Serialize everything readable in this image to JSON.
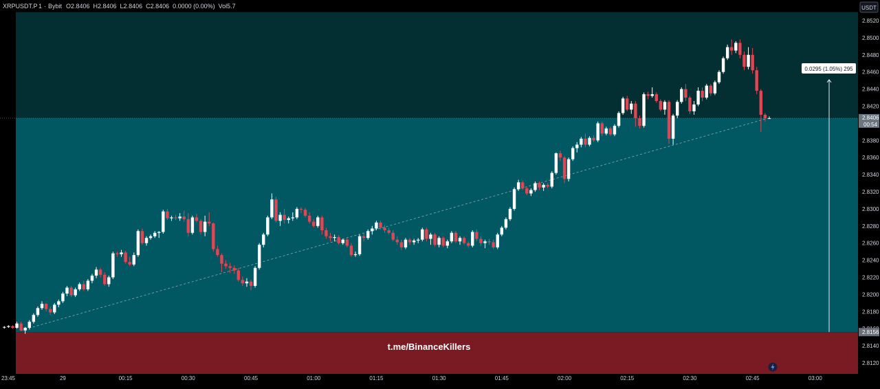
{
  "header": {
    "symbol": "XRPUSDT.P",
    "interval": "1",
    "exchange": "Bybit",
    "ohlc_text": "O2.8406  H2.8406  L2.8406  C2.8406  0.0000 (0.00%)  Vol5.7"
  },
  "currency_label": "USDT",
  "watermark": "t.me/BinanceKillers",
  "measure_label": "0.0295 (1.05%) 295",
  "last_price": {
    "price": "2.8406",
    "countdown": "00:54"
  },
  "range_low_label": "2.8156",
  "colors": {
    "background": "#000000",
    "upper_zone": "#032f33",
    "middle_zone": "#025862",
    "lower_zone": "#7a1a22",
    "bull_candle": "#ffffff",
    "bear_candle": "#e04755",
    "axis_text": "#d1d4dc",
    "bolt_icon_bg": "#1a1f3a",
    "bolt_icon_color": "#6f8cff"
  },
  "chart_data": {
    "type": "candlestick",
    "y_axis": {
      "range": [
        2.8106,
        2.853
      ],
      "ticks": [
        "2.8120",
        "2.8140",
        "2.8160",
        "2.8180",
        "2.8200",
        "2.8220",
        "2.8240",
        "2.8260",
        "2.8280",
        "2.8300",
        "2.8320",
        "2.8340",
        "2.8360",
        "2.8380",
        "2.8400",
        "2.8420",
        "2.8440",
        "2.8460",
        "2.8480",
        "2.8500",
        "2.8520"
      ]
    },
    "x_axis": {
      "ticks": [
        {
          "label": "23:45",
          "t": -1
        },
        {
          "label": "29",
          "t": 14
        },
        {
          "label": "00:15",
          "t": 29
        },
        {
          "label": "00:30",
          "t": 44
        },
        {
          "label": "00:45",
          "t": 59
        },
        {
          "label": "01:00",
          "t": 74
        },
        {
          "label": "01:15",
          "t": 89
        },
        {
          "label": "01:30",
          "t": 104
        },
        {
          "label": "01:45",
          "t": 119
        },
        {
          "label": "02:00",
          "t": 134
        },
        {
          "label": "02:15",
          "t": 149
        },
        {
          "label": "02:30",
          "t": 164
        },
        {
          "label": "02:45",
          "t": 179
        },
        {
          "label": "03:00",
          "t": 194
        }
      ],
      "minutes_per_candle": 1
    },
    "zones": [
      {
        "name": "upper",
        "from": 2.8406,
        "to": 2.853
      },
      {
        "name": "middle",
        "from": 2.8156,
        "to": 2.8406
      },
      {
        "name": "lower",
        "from": 2.8106,
        "to": 2.8156
      }
    ],
    "measure": {
      "from": 2.8156,
      "to": 2.8451,
      "change": 0.0295,
      "percent": 1.05,
      "bars": 295
    },
    "trendline": {
      "from": {
        "t": 4,
        "p": 2.8158
      },
      "to": {
        "t": 182,
        "p": 2.8405
      }
    },
    "candles": [
      [
        2.8162,
        2.8163,
        2.816,
        2.8162
      ],
      [
        2.8162,
        2.8164,
        2.8161,
        2.8163
      ],
      [
        2.8163,
        2.8164,
        2.816,
        2.8161
      ],
      [
        2.8161,
        2.8168,
        2.816,
        2.8166
      ],
      [
        2.8166,
        2.8168,
        2.8157,
        2.8158
      ],
      [
        2.8158,
        2.8162,
        2.8154,
        2.8161
      ],
      [
        2.8161,
        2.817,
        2.8159,
        2.8168
      ],
      [
        2.8168,
        2.8178,
        2.8166,
        2.8176
      ],
      [
        2.8176,
        2.8186,
        2.8174,
        2.8184
      ],
      [
        2.8184,
        2.8192,
        2.8182,
        2.8189
      ],
      [
        2.8189,
        2.819,
        2.818,
        2.8183
      ],
      [
        2.8183,
        2.8186,
        2.8176,
        2.8179
      ],
      [
        2.8179,
        2.819,
        2.8177,
        2.8188
      ],
      [
        2.8188,
        2.8194,
        2.8185,
        2.8192
      ],
      [
        2.8192,
        2.8203,
        2.819,
        2.8201
      ],
      [
        2.8201,
        2.821,
        2.8198,
        2.8208
      ],
      [
        2.8208,
        2.821,
        2.8197,
        2.8199
      ],
      [
        2.8199,
        2.8208,
        2.8197,
        2.8206
      ],
      [
        2.8206,
        2.8214,
        2.8204,
        2.8212
      ],
      [
        2.8212,
        2.8216,
        2.8204,
        2.8206
      ],
      [
        2.8206,
        2.8218,
        2.8204,
        2.8216
      ],
      [
        2.8216,
        2.8224,
        2.8213,
        2.8222
      ],
      [
        2.8222,
        2.8232,
        2.8219,
        2.8229
      ],
      [
        2.8229,
        2.8231,
        2.822,
        2.8223
      ],
      [
        2.8223,
        2.8226,
        2.821,
        2.8212
      ],
      [
        2.8212,
        2.8222,
        2.8209,
        2.822
      ],
      [
        2.822,
        2.825,
        2.8218,
        2.8248
      ],
      [
        2.8248,
        2.825,
        2.8244,
        2.8247
      ],
      [
        2.8247,
        2.8252,
        2.8244,
        2.8249
      ],
      [
        2.8249,
        2.8251,
        2.8236,
        2.8238
      ],
      [
        2.8238,
        2.8244,
        2.8233,
        2.8235
      ],
      [
        2.8235,
        2.8249,
        2.8233,
        2.8246
      ],
      [
        2.8246,
        2.8276,
        2.8244,
        2.8274
      ],
      [
        2.8274,
        2.8277,
        2.8258,
        2.826
      ],
      [
        2.826,
        2.8268,
        2.8257,
        2.8266
      ],
      [
        2.8266,
        2.827,
        2.8264,
        2.8268
      ],
      [
        2.8268,
        2.8274,
        2.8266,
        2.8272
      ],
      [
        2.8272,
        2.8274,
        2.8266,
        2.8273
      ],
      [
        2.8273,
        2.8299,
        2.8271,
        2.8297
      ],
      [
        2.8297,
        2.83,
        2.8287,
        2.8289
      ],
      [
        2.8289,
        2.8292,
        2.8286,
        2.829
      ],
      [
        2.829,
        2.8293,
        2.8287,
        2.8289
      ],
      [
        2.8289,
        2.8295,
        2.8286,
        2.8291
      ],
      [
        2.8291,
        2.8298,
        2.8285,
        2.8288
      ],
      [
        2.8288,
        2.8295,
        2.8268,
        2.8272
      ],
      [
        2.8272,
        2.8292,
        2.827,
        2.829
      ],
      [
        2.829,
        2.8294,
        2.8284,
        2.8286
      ],
      [
        2.8286,
        2.8288,
        2.827,
        2.8273
      ],
      [
        2.8273,
        2.8292,
        2.8268,
        2.8285
      ],
      [
        2.8285,
        2.8296,
        2.828,
        2.8283
      ],
      [
        2.8283,
        2.8284,
        2.825,
        2.8253
      ],
      [
        2.8253,
        2.8257,
        2.8244,
        2.8246
      ],
      [
        2.8246,
        2.8248,
        2.8226,
        2.8236
      ],
      [
        2.8236,
        2.824,
        2.823,
        2.8233
      ],
      [
        2.8233,
        2.8237,
        2.8225,
        2.8231
      ],
      [
        2.8231,
        2.8234,
        2.8224,
        2.8228
      ],
      [
        2.8228,
        2.8231,
        2.8215,
        2.8217
      ],
      [
        2.8217,
        2.8221,
        2.821,
        2.8213
      ],
      [
        2.8213,
        2.8219,
        2.8209,
        2.8215
      ],
      [
        2.8215,
        2.8217,
        2.8205,
        2.821
      ],
      [
        2.821,
        2.8233,
        2.8208,
        2.8231
      ],
      [
        2.8231,
        2.826,
        2.8229,
        2.8258
      ],
      [
        2.8258,
        2.8272,
        2.8255,
        2.827
      ],
      [
        2.827,
        2.8292,
        2.8268,
        2.829
      ],
      [
        2.829,
        2.8318,
        2.8288,
        2.8311
      ],
      [
        2.8311,
        2.8314,
        2.8284,
        2.8286
      ],
      [
        2.8286,
        2.8296,
        2.828,
        2.8293
      ],
      [
        2.8293,
        2.83,
        2.8283,
        2.8287
      ],
      [
        2.8287,
        2.8291,
        2.8283,
        2.8289
      ],
      [
        2.8289,
        2.8296,
        2.8286,
        2.829
      ],
      [
        2.829,
        2.8302,
        2.8288,
        2.83
      ],
      [
        2.83,
        2.8302,
        2.8295,
        2.8299
      ],
      [
        2.8299,
        2.8301,
        2.829,
        2.8292
      ],
      [
        2.8292,
        2.8296,
        2.8283,
        2.8285
      ],
      [
        2.8285,
        2.8288,
        2.8278,
        2.828
      ],
      [
        2.828,
        2.8292,
        2.8278,
        2.829
      ],
      [
        2.829,
        2.8292,
        2.827,
        2.8275
      ],
      [
        2.8275,
        2.8278,
        2.8265,
        2.8268
      ],
      [
        2.8268,
        2.8272,
        2.8262,
        2.8266
      ],
      [
        2.8266,
        2.827,
        2.8262,
        2.8267
      ],
      [
        2.8267,
        2.8269,
        2.8258,
        2.826
      ],
      [
        2.826,
        2.8265,
        2.8258,
        2.8264
      ],
      [
        2.8264,
        2.8266,
        2.8255,
        2.8257
      ],
      [
        2.8257,
        2.826,
        2.8244,
        2.8246
      ],
      [
        2.8246,
        2.825,
        2.8244,
        2.8247
      ],
      [
        2.8247,
        2.827,
        2.8245,
        2.8268
      ],
      [
        2.8268,
        2.8272,
        2.8262,
        2.8266
      ],
      [
        2.8266,
        2.8276,
        2.8264,
        2.8274
      ],
      [
        2.8274,
        2.828,
        2.827,
        2.8277
      ],
      [
        2.8277,
        2.8286,
        2.8275,
        2.8284
      ],
      [
        2.8284,
        2.8286,
        2.8276,
        2.8278
      ],
      [
        2.8278,
        2.8281,
        2.8272,
        2.8275
      ],
      [
        2.8275,
        2.8278,
        2.827,
        2.8272
      ],
      [
        2.8272,
        2.8275,
        2.8262,
        2.8264
      ],
      [
        2.8264,
        2.8268,
        2.8258,
        2.8261
      ],
      [
        2.8261,
        2.8264,
        2.8252,
        2.8255
      ],
      [
        2.8255,
        2.8266,
        2.8253,
        2.8264
      ],
      [
        2.8264,
        2.8266,
        2.8258,
        2.8261
      ],
      [
        2.8261,
        2.8265,
        2.8258,
        2.8263
      ],
      [
        2.8263,
        2.8266,
        2.826,
        2.8264
      ],
      [
        2.8264,
        2.8278,
        2.8262,
        2.8276
      ],
      [
        2.8276,
        2.8278,
        2.8262,
        2.8265
      ],
      [
        2.8265,
        2.8272,
        2.8258,
        2.827
      ],
      [
        2.827,
        2.8272,
        2.8256,
        2.8258
      ],
      [
        2.8258,
        2.8268,
        2.8255,
        2.8266
      ],
      [
        2.8266,
        2.8268,
        2.8255,
        2.8257
      ],
      [
        2.8257,
        2.8264,
        2.8254,
        2.8262
      ],
      [
        2.8262,
        2.8274,
        2.826,
        2.8272
      ],
      [
        2.8272,
        2.8274,
        2.826,
        2.8262
      ],
      [
        2.8262,
        2.8268,
        2.8258,
        2.8266
      ],
      [
        2.8266,
        2.8268,
        2.8258,
        2.826
      ],
      [
        2.826,
        2.8262,
        2.8255,
        2.8257
      ],
      [
        2.8257,
        2.8275,
        2.8255,
        2.8273
      ],
      [
        2.8273,
        2.8276,
        2.8262,
        2.8265
      ],
      [
        2.8265,
        2.8268,
        2.8257,
        2.826
      ],
      [
        2.826,
        2.8264,
        2.8254,
        2.8262
      ],
      [
        2.8262,
        2.8265,
        2.8258,
        2.8261
      ],
      [
        2.8261,
        2.8264,
        2.8253,
        2.8255
      ],
      [
        2.8255,
        2.8272,
        2.8253,
        2.827
      ],
      [
        2.827,
        2.828,
        2.8268,
        2.8278
      ],
      [
        2.8278,
        2.829,
        2.8276,
        2.8288
      ],
      [
        2.8288,
        2.8302,
        2.8286,
        2.83
      ],
      [
        2.83,
        2.8325,
        2.8298,
        2.8323
      ],
      [
        2.8323,
        2.8334,
        2.8321,
        2.8331
      ],
      [
        2.8331,
        2.8333,
        2.8322,
        2.8324
      ],
      [
        2.8324,
        2.8326,
        2.8316,
        2.8318
      ],
      [
        2.8318,
        2.8324,
        2.8315,
        2.8322
      ],
      [
        2.8322,
        2.8332,
        2.832,
        2.833
      ],
      [
        2.833,
        2.8332,
        2.8322,
        2.8325
      ],
      [
        2.8325,
        2.833,
        2.8321,
        2.8328
      ],
      [
        2.8328,
        2.833,
        2.8324,
        2.8326
      ],
      [
        2.8326,
        2.8344,
        2.8324,
        2.8342
      ],
      [
        2.8342,
        2.8366,
        2.834,
        2.8365
      ],
      [
        2.8365,
        2.8368,
        2.8356,
        2.836
      ],
      [
        2.836,
        2.8362,
        2.833,
        2.8335
      ],
      [
        2.8335,
        2.836,
        2.8332,
        2.8358
      ],
      [
        2.8358,
        2.8373,
        2.8356,
        2.8371
      ],
      [
        2.8371,
        2.8378,
        2.8366,
        2.8375
      ],
      [
        2.8375,
        2.8384,
        2.8372,
        2.8382
      ],
      [
        2.8382,
        2.8388,
        2.8372,
        2.8375
      ],
      [
        2.8375,
        2.8385,
        2.8373,
        2.8383
      ],
      [
        2.8383,
        2.8386,
        2.8378,
        2.838
      ],
      [
        2.838,
        2.8402,
        2.8378,
        2.84
      ],
      [
        2.84,
        2.8402,
        2.8385,
        2.8388
      ],
      [
        2.8388,
        2.8396,
        2.8386,
        2.8394
      ],
      [
        2.8394,
        2.8396,
        2.8385,
        2.8387
      ],
      [
        2.8387,
        2.8399,
        2.8385,
        2.8397
      ],
      [
        2.8397,
        2.8414,
        2.8395,
        2.8412
      ],
      [
        2.8412,
        2.8431,
        2.841,
        2.8429
      ],
      [
        2.8429,
        2.8432,
        2.8414,
        2.8416
      ],
      [
        2.8416,
        2.8426,
        2.8411,
        2.8423
      ],
      [
        2.8423,
        2.8426,
        2.8396,
        2.8406
      ],
      [
        2.8406,
        2.8409,
        2.8394,
        2.8397
      ],
      [
        2.8397,
        2.8436,
        2.8395,
        2.8434
      ],
      [
        2.8434,
        2.8437,
        2.8428,
        2.8432
      ],
      [
        2.8432,
        2.8442,
        2.843,
        2.8434
      ],
      [
        2.8434,
        2.8436,
        2.8424,
        2.8426
      ],
      [
        2.8426,
        2.8428,
        2.8414,
        2.8416
      ],
      [
        2.8416,
        2.8427,
        2.841,
        2.8425
      ],
      [
        2.8425,
        2.8427,
        2.8376,
        2.8382
      ],
      [
        2.8382,
        2.8411,
        2.8375,
        2.8409
      ],
      [
        2.8409,
        2.8427,
        2.8406,
        2.8425
      ],
      [
        2.8425,
        2.8442,
        2.8423,
        2.844
      ],
      [
        2.844,
        2.8446,
        2.8426,
        2.843
      ],
      [
        2.843,
        2.8432,
        2.8411,
        2.8414
      ],
      [
        2.8414,
        2.8426,
        2.841,
        2.8422
      ],
      [
        2.8422,
        2.8442,
        2.842,
        2.8438
      ],
      [
        2.8438,
        2.8442,
        2.8426,
        2.843
      ],
      [
        2.843,
        2.8446,
        2.8428,
        2.8444
      ],
      [
        2.8444,
        2.8446,
        2.8432,
        2.8435
      ],
      [
        2.8435,
        2.845,
        2.8433,
        2.8448
      ],
      [
        2.8448,
        2.8462,
        2.8446,
        2.846
      ],
      [
        2.846,
        2.8478,
        2.8458,
        2.8476
      ],
      [
        2.8476,
        2.8492,
        2.8474,
        2.8489
      ],
      [
        2.8489,
        2.8498,
        2.848,
        2.8485
      ],
      [
        2.8485,
        2.8496,
        2.8482,
        2.8494
      ],
      [
        2.8494,
        2.8498,
        2.8476,
        2.848
      ],
      [
        2.848,
        2.8484,
        2.8462,
        2.8466
      ],
      [
        2.8466,
        2.8489,
        2.8463,
        2.848
      ],
      [
        2.848,
        2.8488,
        2.8458,
        2.8462
      ],
      [
        2.8462,
        2.8466,
        2.8434,
        2.8438
      ],
      [
        2.8438,
        2.844,
        2.839,
        2.841
      ],
      [
        2.841,
        2.8412,
        2.8402,
        2.8406
      ],
      [
        2.8406,
        2.8408,
        2.8405,
        2.8406
      ]
    ]
  }
}
